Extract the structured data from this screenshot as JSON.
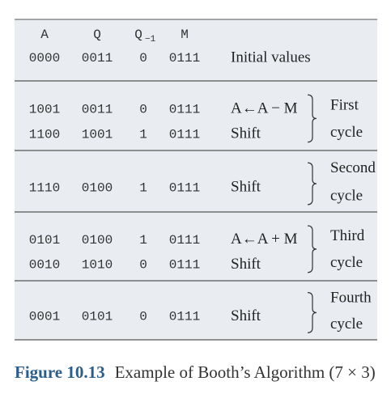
{
  "header": {
    "a": "A",
    "q": "Q",
    "q1": "Q",
    "q1_sub": "−1",
    "m": "M"
  },
  "initial": {
    "a": "0000",
    "q": "0011",
    "q1": "0",
    "m": "0111",
    "op": "Initial values"
  },
  "cycles": [
    {
      "rows": [
        {
          "a": "1001",
          "q": "0011",
          "q1": "0",
          "m": "0111",
          "op": "A←A − M"
        },
        {
          "a": "1100",
          "q": "1001",
          "q1": "1",
          "m": "0111",
          "op": "Shift"
        }
      ],
      "label": [
        "First",
        "cycle"
      ]
    },
    {
      "rows": [
        {
          "a": "1110",
          "q": "0100",
          "q1": "1",
          "m": "0111",
          "op": "Shift"
        }
      ],
      "label": [
        "Second",
        "cycle"
      ]
    },
    {
      "rows": [
        {
          "a": "0101",
          "q": "0100",
          "q1": "1",
          "m": "0111",
          "op": "A←A + M"
        },
        {
          "a": "0010",
          "q": "1010",
          "q1": "0",
          "m": "0111",
          "op": "Shift"
        }
      ],
      "label": [
        "Third",
        "cycle"
      ]
    },
    {
      "rows": [
        {
          "a": "0001",
          "q": "0101",
          "q1": "0",
          "m": "0111",
          "op": "Shift"
        }
      ],
      "label": [
        "Fourth",
        "cycle"
      ]
    }
  ],
  "caption": {
    "number": "Figure 10.13",
    "text": "Example of Booth’s Algorithm (7 × 3)"
  }
}
